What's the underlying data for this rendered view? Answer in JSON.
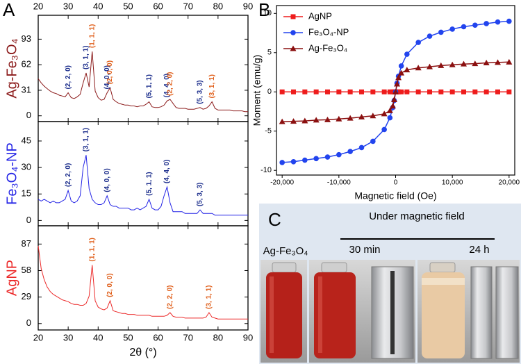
{
  "chart_data": [
    {
      "type": "line",
      "label": "A",
      "ylabel": "Ag-Fe₃O₄",
      "color": "#8b1a1a",
      "label_color": "#8b1a1a",
      "xlim": [
        20,
        90
      ],
      "xticks": [
        20,
        30,
        40,
        50,
        60,
        70,
        80,
        90
      ],
      "ylim": [
        -7,
        122
      ],
      "yticks": [
        0,
        31,
        62,
        93
      ],
      "x": [
        20,
        21,
        22,
        23,
        24,
        25,
        26,
        27,
        28,
        29,
        30,
        31,
        32,
        33,
        34,
        35,
        36,
        37,
        38,
        39,
        40,
        41,
        42,
        43,
        44,
        45,
        46,
        47,
        48,
        49,
        50,
        51,
        52,
        53,
        54,
        55,
        56,
        57,
        58,
        59,
        60,
        61,
        62,
        63,
        64,
        65,
        66,
        67,
        68,
        69,
        70,
        71,
        72,
        73,
        74,
        75,
        76,
        77,
        78,
        79,
        80,
        81,
        82,
        83,
        84,
        85,
        86,
        87,
        88,
        89,
        90
      ],
      "values": [
        45,
        40,
        36,
        33,
        30,
        28,
        27,
        25,
        24,
        23,
        28,
        22,
        21,
        23,
        26,
        40,
        52,
        35,
        78,
        30,
        22,
        19,
        20,
        28,
        34,
        20,
        17,
        15,
        14,
        13,
        13,
        12,
        12,
        11,
        12,
        12,
        14,
        17,
        11,
        10,
        10,
        11,
        13,
        18,
        20,
        15,
        10,
        9,
        9,
        9,
        8,
        8,
        8,
        9,
        10,
        8,
        9,
        12,
        17,
        9,
        7,
        7,
        7,
        7,
        7,
        6,
        6,
        6,
        6,
        5,
        5
      ],
      "annotations": [
        {
          "text": "(2, 2, 0)",
          "x": 30,
          "color": "#1c2e8c"
        },
        {
          "text": "(3, 1, 1)",
          "x": 36,
          "color": "#1c2e8c"
        },
        {
          "text": "(1, 1, 1)",
          "x": 38,
          "color": "#e0601c"
        },
        {
          "text": "(4, 0, 0)",
          "x": 43,
          "color": "#1c2e8c"
        },
        {
          "text": "(2, 0, 0)",
          "x": 44,
          "color": "#e0601c"
        },
        {
          "text": "(5, 1, 1)",
          "x": 57,
          "color": "#1c2e8c"
        },
        {
          "text": "(4, 4, 0)",
          "x": 63,
          "color": "#1c2e8c"
        },
        {
          "text": "(2, 2, 0)",
          "x": 64,
          "color": "#e0601c"
        },
        {
          "text": "(5, 3, 3)",
          "x": 74,
          "color": "#1c2e8c"
        },
        {
          "text": "(3, 1, 1)",
          "x": 78,
          "color": "#e0601c"
        }
      ]
    },
    {
      "type": "line",
      "ylabel": "Fe₃O₄-NP",
      "color": "#2424e6",
      "label_color": "#2424e6",
      "xlim": [
        20,
        90
      ],
      "xticks": [
        20,
        30,
        40,
        50,
        60,
        70,
        80,
        90
      ],
      "ylim": [
        -3,
        56
      ],
      "yticks": [
        0,
        15,
        30,
        45
      ],
      "x": [
        20,
        21,
        22,
        23,
        24,
        25,
        26,
        27,
        28,
        29,
        30,
        31,
        32,
        33,
        34,
        35,
        36,
        37,
        38,
        39,
        40,
        41,
        42,
        43,
        44,
        45,
        46,
        47,
        48,
        49,
        50,
        51,
        52,
        53,
        54,
        55,
        56,
        57,
        58,
        59,
        60,
        61,
        62,
        63,
        64,
        65,
        66,
        67,
        68,
        69,
        70,
        71,
        72,
        73,
        74,
        75,
        76,
        77,
        78,
        79,
        80,
        81,
        82,
        83,
        84,
        85,
        86,
        87,
        88,
        89,
        90
      ],
      "values": [
        12,
        11,
        12,
        11,
        10,
        11,
        10,
        10,
        11,
        12,
        17,
        11,
        10,
        11,
        14,
        30,
        37,
        18,
        12,
        10,
        9,
        9,
        10,
        14,
        9,
        8,
        8,
        7,
        7,
        7,
        7,
        6,
        6,
        7,
        6,
        7,
        8,
        12,
        7,
        6,
        6,
        8,
        14,
        19,
        10,
        5,
        5,
        5,
        5,
        4,
        4,
        4,
        4,
        4,
        6,
        4,
        4,
        4,
        4,
        3,
        3,
        3,
        3,
        3,
        3,
        3,
        3,
        3,
        3,
        3,
        3
      ],
      "annotations": [
        {
          "text": "(2, 2, 0)",
          "x": 30,
          "color": "#1c2e8c"
        },
        {
          "text": "(3, 1, 1)",
          "x": 36,
          "color": "#1c2e8c"
        },
        {
          "text": "(4, 0, 0)",
          "x": 43,
          "color": "#1c2e8c"
        },
        {
          "text": "(5, 1, 1)",
          "x": 57,
          "color": "#1c2e8c"
        },
        {
          "text": "(4, 4, 0)",
          "x": 63,
          "color": "#1c2e8c"
        },
        {
          "text": "(5, 3, 3)",
          "x": 74,
          "color": "#1c2e8c"
        }
      ]
    },
    {
      "type": "line",
      "ylabel": "AgNP",
      "color": "#ec2a2a",
      "label_color": "#ec2a2a",
      "xlabel": "2θ (°)",
      "xlim": [
        20,
        90
      ],
      "xticks": [
        20,
        30,
        40,
        50,
        60,
        70,
        80,
        90
      ],
      "ylim": [
        -7,
        107
      ],
      "yticks": [
        0,
        29,
        58,
        87
      ],
      "x": [
        20,
        21,
        22,
        23,
        24,
        25,
        26,
        27,
        28,
        29,
        30,
        31,
        32,
        33,
        34,
        35,
        36,
        37,
        38,
        39,
        40,
        41,
        42,
        43,
        44,
        45,
        46,
        47,
        48,
        49,
        50,
        51,
        52,
        53,
        54,
        55,
        56,
        57,
        58,
        59,
        60,
        61,
        62,
        63,
        64,
        65,
        66,
        67,
        68,
        69,
        70,
        71,
        72,
        73,
        74,
        75,
        76,
        77,
        78,
        79,
        80,
        81,
        82,
        83,
        84,
        85,
        86,
        87,
        88,
        89,
        90
      ],
      "values": [
        85,
        60,
        48,
        40,
        35,
        32,
        30,
        28,
        26,
        25,
        24,
        22,
        21,
        21,
        20,
        20,
        22,
        30,
        64,
        25,
        18,
        16,
        15,
        17,
        25,
        14,
        13,
        12,
        11,
        11,
        10,
        10,
        10,
        9,
        9,
        9,
        9,
        9,
        8,
        8,
        8,
        8,
        8,
        9,
        12,
        8,
        7,
        7,
        7,
        6,
        6,
        6,
        6,
        6,
        6,
        6,
        7,
        12,
        7,
        6,
        5,
        5,
        5,
        5,
        5,
        5,
        5,
        5,
        5,
        5,
        5
      ],
      "annotations": [
        {
          "text": "(1, 1, 1)",
          "x": 38,
          "color": "#e0601c"
        },
        {
          "text": "(2, 0, 0)",
          "x": 44,
          "color": "#e0601c"
        },
        {
          "text": "(2, 2, 0)",
          "x": 64,
          "color": "#e0601c"
        },
        {
          "text": "(3, 1, 1)",
          "x": 77,
          "color": "#e0601c"
        }
      ]
    },
    {
      "type": "line",
      "label": "B",
      "xlabel": "Magnetic field (Oe)",
      "ylabel": "Moment (emu/g)",
      "xlim": [
        -21000,
        21000
      ],
      "xticks": [
        {
          "value": -20000,
          "label": "-20,000"
        },
        {
          "value": -10000,
          "label": "-10,000"
        },
        0,
        {
          "value": 10000,
          "label": "10,000"
        },
        {
          "value": 20000,
          "label": "20,000"
        }
      ],
      "ylim": [
        -10.6,
        11
      ],
      "yticks": [
        -10,
        -5,
        0,
        5,
        10
      ],
      "legend": "upper left",
      "x": [
        -20000,
        -18000,
        -16000,
        -14000,
        -12000,
        -10000,
        -8000,
        -6000,
        -4000,
        -2000,
        -1000,
        -500,
        -250,
        0,
        250,
        500,
        1000,
        2000,
        4000,
        6000,
        8000,
        10000,
        12000,
        14000,
        16000,
        18000,
        20000
      ],
      "series": [
        {
          "name": "AgNP",
          "color": "#ee1c1c",
          "marker": "square",
          "values": [
            0,
            0,
            0,
            0,
            0,
            0,
            0,
            0,
            0,
            0,
            0,
            0,
            0,
            0,
            0,
            0,
            0,
            0,
            0,
            0,
            0,
            0,
            0,
            0,
            0,
            0,
            0
          ]
        },
        {
          "name": "Fe₃O₄-NP",
          "color": "#2244ee",
          "marker": "circle",
          "values": [
            -9.0,
            -8.9,
            -8.7,
            -8.5,
            -8.3,
            -8.0,
            -7.6,
            -7.1,
            -6.3,
            -4.8,
            -3.3,
            -2.0,
            -1.1,
            0,
            1.1,
            2.0,
            3.3,
            4.8,
            6.3,
            7.1,
            7.6,
            8.0,
            8.3,
            8.5,
            8.7,
            8.9,
            9.0
          ]
        },
        {
          "name": "Ag-Fe₃O₄",
          "color": "#8b1010",
          "marker": "triangle",
          "values": [
            -3.8,
            -3.75,
            -3.7,
            -3.6,
            -3.55,
            -3.45,
            -3.35,
            -3.2,
            -3.05,
            -2.8,
            -2.4,
            -1.8,
            -1.0,
            0,
            1.0,
            1.8,
            2.4,
            2.8,
            3.05,
            3.2,
            3.35,
            3.45,
            3.55,
            3.6,
            3.7,
            3.75,
            3.8
          ]
        }
      ]
    }
  ],
  "panel_c": {
    "label": "C",
    "heading": "Under magnetic field",
    "times": [
      "30 min",
      "24 h"
    ],
    "sample": "Ag-Fe₃O₄"
  }
}
